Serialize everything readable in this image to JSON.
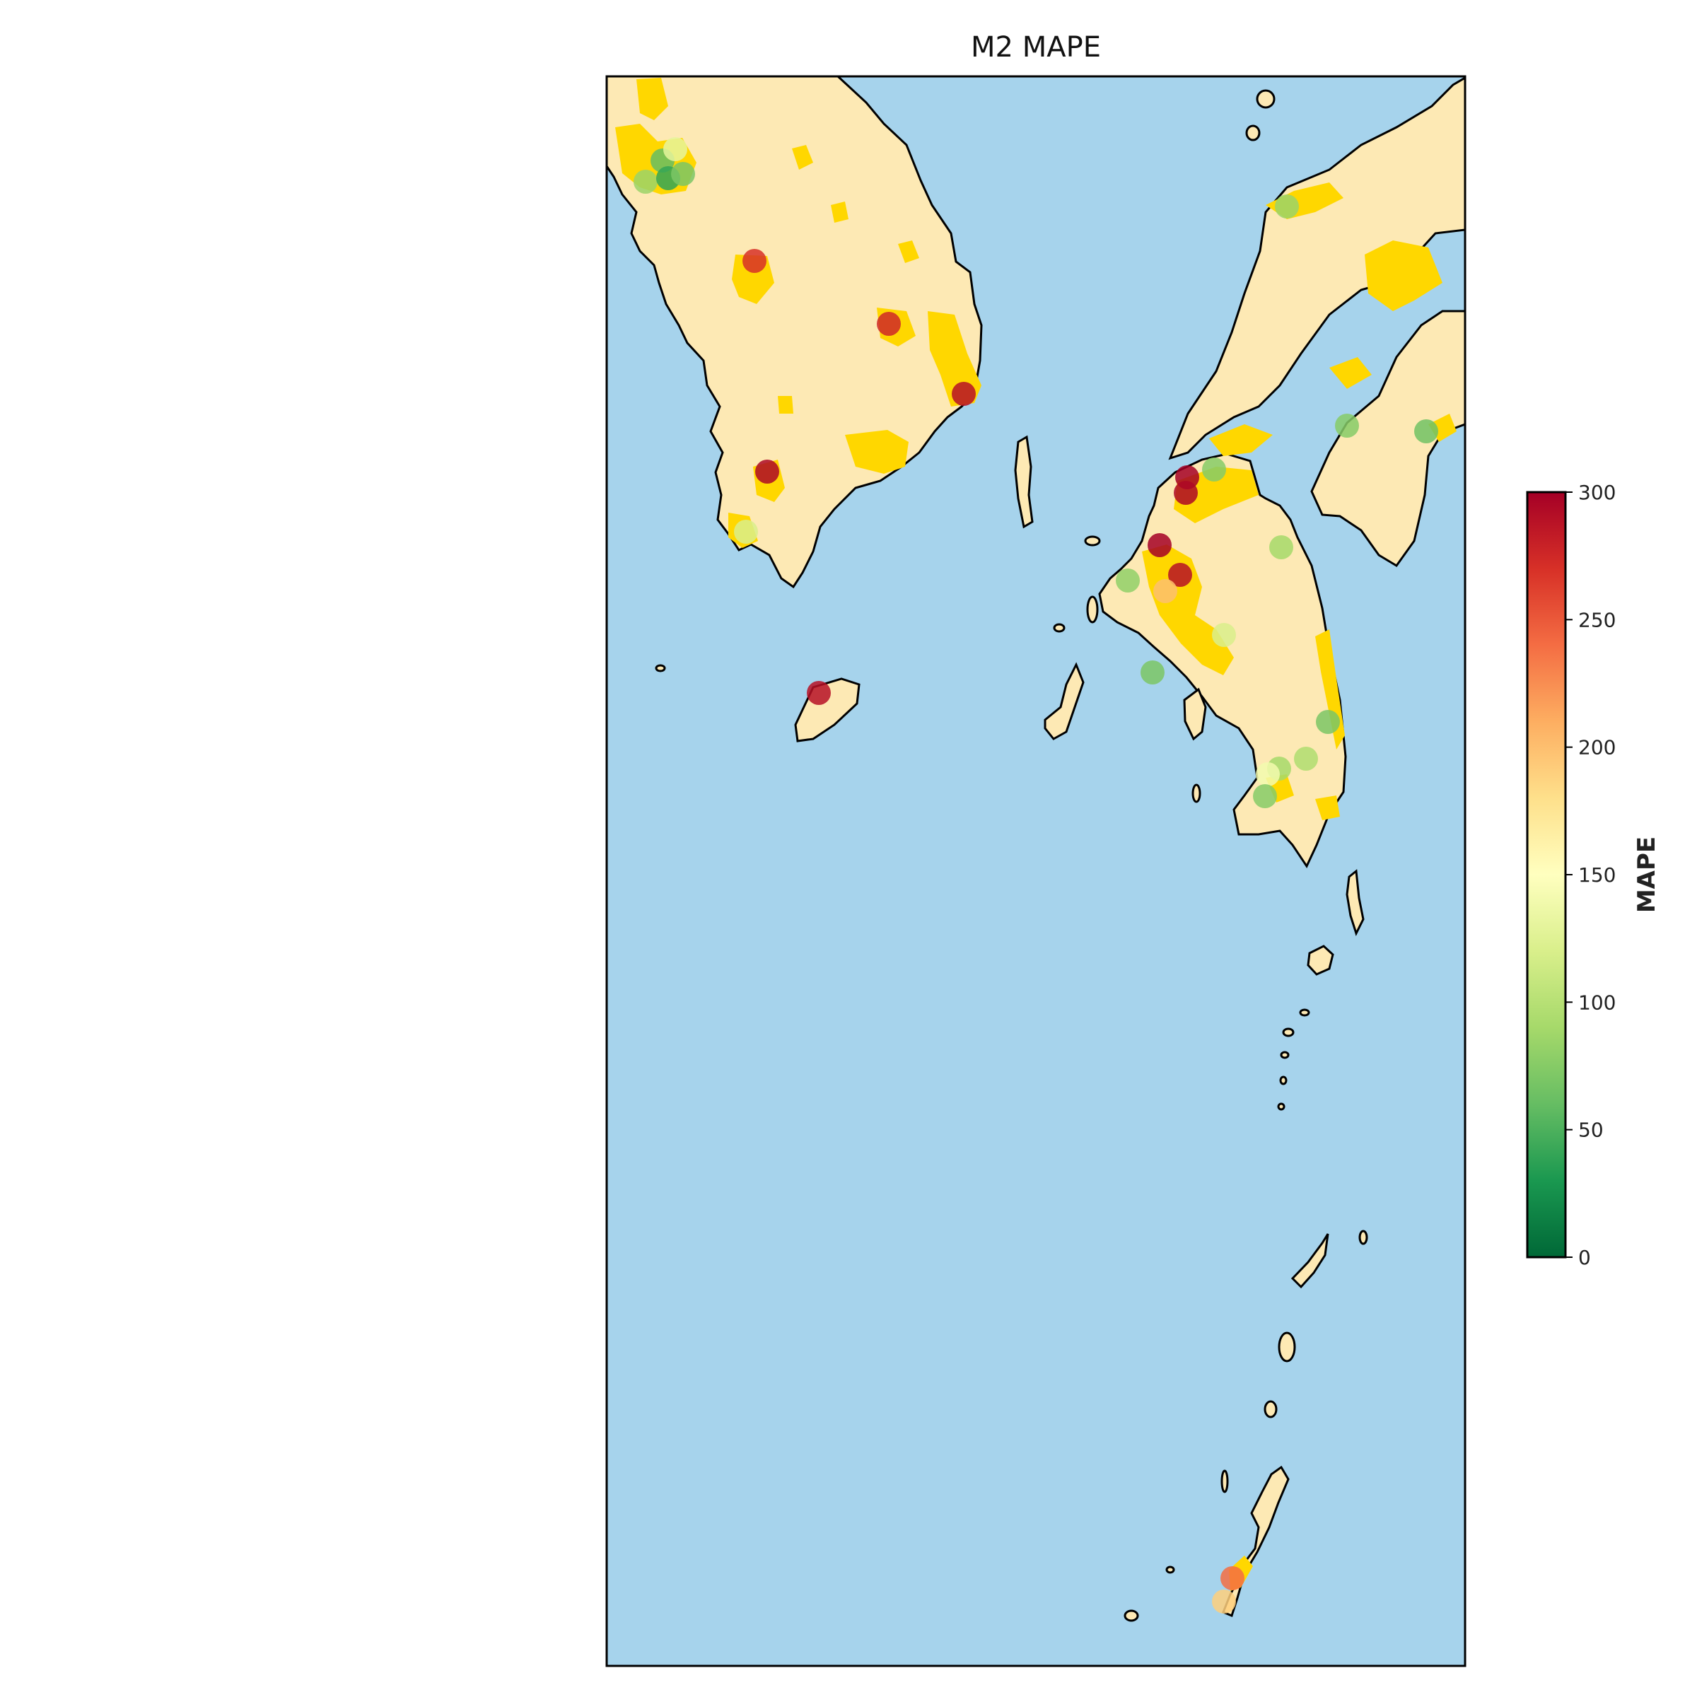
{
  "chart_data": {
    "type": "scatter",
    "title": "M2 MAPE",
    "colorbar": {
      "label": "MAPE",
      "range": [
        0,
        300
      ],
      "ticks": [
        "0",
        "50",
        "100",
        "150",
        "200",
        "250",
        "300"
      ],
      "colormap": "RdYlGn_r"
    },
    "points": [
      {
        "value": 85
      },
      {
        "value": 60
      },
      {
        "value": 130
      },
      {
        "value": 40
      },
      {
        "value": 70
      },
      {
        "value": 270
      },
      {
        "value": 275
      },
      {
        "value": 290
      },
      {
        "value": 295
      },
      {
        "value": 120
      },
      {
        "value": 290
      },
      {
        "value": 75
      },
      {
        "value": 300
      },
      {
        "value": 295
      },
      {
        "value": 90
      },
      {
        "value": 300
      },
      {
        "value": 290
      },
      {
        "value": 200
      },
      {
        "value": 80
      },
      {
        "value": 70
      },
      {
        "value": 120
      },
      {
        "value": 85
      },
      {
        "value": 75
      },
      {
        "value": 65
      },
      {
        "value": 70
      },
      {
        "value": 90
      },
      {
        "value": 140
      },
      {
        "value": 75
      },
      {
        "value": 95
      },
      {
        "value": 240
      },
      {
        "value": 190
      }
    ]
  },
  "colors": {
    "ocean": "#a6d3ec",
    "land": "#fde9b4",
    "urban": "#ffd700",
    "coast": "#000000"
  }
}
